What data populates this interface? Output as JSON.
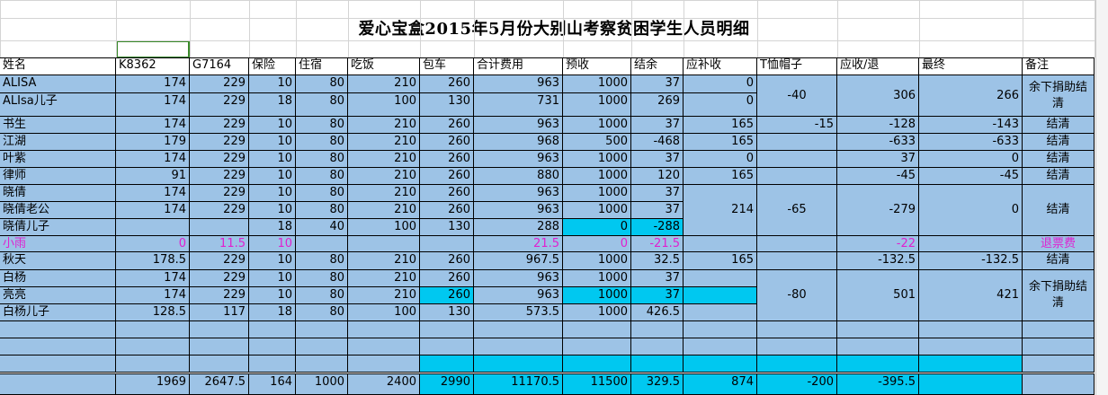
{
  "title": "爱心宝盒2015年5月份大别山考察贫困学生人员明细",
  "headers": [
    "姓名",
    "K8362",
    "G7164",
    "保险",
    "住宿",
    "吃饭",
    "包车",
    "合计费用",
    "预收",
    "结余",
    "应补收",
    "T恤帽子",
    "应收/退",
    "最终",
    "备注"
  ],
  "rows": [
    [
      "ALISA",
      "174",
      "229",
      "10",
      "80",
      "210",
      "260",
      "963",
      "1000",
      "37",
      "0"
    ],
    [
      "ALIsa儿子",
      "174",
      "229",
      "18",
      "80",
      "100",
      "130",
      "731",
      "1000",
      "269",
      "0"
    ],
    [
      "书生",
      "174",
      "229",
      "10",
      "80",
      "210",
      "260",
      "963",
      "1000",
      "37",
      "165",
      "-15",
      "-128",
      "-143",
      "结清"
    ],
    [
      "江湖",
      "179",
      "229",
      "10",
      "80",
      "210",
      "260",
      "968",
      "500",
      "-468",
      "165",
      "",
      "-633",
      "-633",
      "结清"
    ],
    [
      "叶紫",
      "174",
      "229",
      "10",
      "80",
      "210",
      "260",
      "963",
      "1000",
      "37",
      "0",
      "",
      "37",
      "0",
      "结清"
    ],
    [
      "律师",
      "91",
      "229",
      "10",
      "80",
      "210",
      "260",
      "880",
      "1000",
      "120",
      "165",
      "",
      "-45",
      "-45",
      "结清"
    ],
    [
      "晓倩",
      "174",
      "229",
      "10",
      "80",
      "210",
      "260",
      "963",
      "1000",
      "37"
    ],
    [
      "晓倩老公",
      "174",
      "229",
      "10",
      "80",
      "210",
      "260",
      "963",
      "1000",
      "37"
    ],
    [
      "晓倩儿子",
      "",
      "",
      "18",
      "40",
      "100",
      "130",
      "288",
      "0",
      "-288"
    ],
    [
      "小雨",
      "0",
      "11.5",
      "10",
      "",
      "",
      "",
      "21.5",
      "0",
      "-21.5",
      "",
      "",
      "-22",
      "",
      "退票费"
    ],
    [
      "秋天",
      "178.5",
      "229",
      "10",
      "80",
      "210",
      "260",
      "967.5",
      "1000",
      "32.5",
      "165",
      "",
      "-132.5",
      "-132.5",
      "结清"
    ],
    [
      "白杨",
      "174",
      "229",
      "10",
      "80",
      "210",
      "260",
      "963",
      "1000",
      "37"
    ],
    [
      "亮亮",
      "174",
      "229",
      "10",
      "80",
      "210",
      "260",
      "963",
      "1000",
      "37"
    ],
    [
      "白杨儿子",
      "128.5",
      "117",
      "18",
      "80",
      "100",
      "130",
      "573.5",
      "1000",
      "426.5"
    ]
  ],
  "merged": {
    "alisa_tshirt": "-40",
    "alisa_due": "306",
    "alisa_final": "266",
    "alisa_note": "余下捐助结清",
    "xq_supp": "214",
    "xq_tshirt": "-65",
    "xq_due": "-279",
    "xq_final": "0",
    "xq_note": "结清",
    "by_tshirt": "-80",
    "by_due": "501",
    "by_final": "421",
    "by_note": "余下捐助结清"
  },
  "totals": [
    "",
    "1969",
    "2647.5",
    "164",
    "1000",
    "2400",
    "2990",
    "11170.5",
    "11500",
    "329.5",
    "874",
    "-200",
    "-395.5",
    "",
    ""
  ],
  "colors": {
    "fill": "#9dc3e6",
    "highlight": "#00c8f0",
    "pink": "#e020d0",
    "selection": "#3a8a2a"
  }
}
